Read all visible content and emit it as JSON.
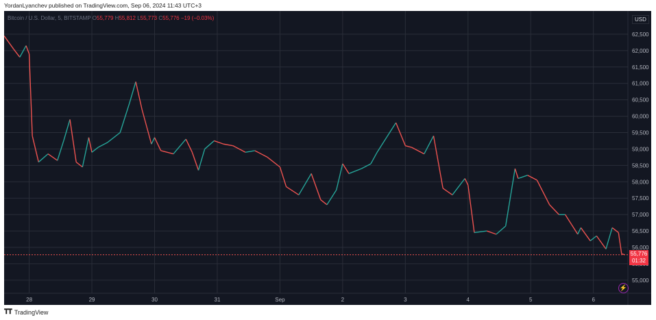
{
  "header": {
    "published": "YordanLyanchev published on TradingView.com, Sep 06, 2024 11:43 UTC+3"
  },
  "legend": {
    "symbol": "Bitcoin / U.S. Dollar, 5, BITSTAMP",
    "o_label": "O",
    "o": "55,779",
    "h_label": "H",
    "h": "55,812",
    "l_label": "L",
    "l": "55,773",
    "c_label": "C",
    "c": "55,776",
    "change": "−19 (−0.03%)"
  },
  "currency": "USD",
  "price_tag": {
    "price": "55,776",
    "countdown": "01:32"
  },
  "footer": {
    "brand": "TradingView"
  },
  "colors": {
    "up": "#26a69a",
    "down": "#ef5350",
    "grid": "#2a2e39",
    "bg": "#131722",
    "tag": "#f23645"
  },
  "chart_data": {
    "type": "line",
    "title": "",
    "xlabel": "",
    "ylabel": "",
    "x_ticks": [
      "28",
      "29",
      "30",
      "31",
      "Sep",
      "2",
      "3",
      "4",
      "5",
      "6"
    ],
    "y_ticks": [
      "62,500",
      "62,000",
      "61,500",
      "61,000",
      "60,500",
      "60,000",
      "59,500",
      "59,000",
      "58,500",
      "58,000",
      "57,500",
      "57,000",
      "56,500",
      "56,000",
      "55,500",
      "55,000"
    ],
    "ylim": [
      54600,
      63000
    ],
    "xlim": [
      27.6,
      37.55
    ],
    "last_price": 55776,
    "series": [
      {
        "x": [
          27.6,
          27.75,
          27.85,
          27.95,
          28.0,
          28.05,
          28.15,
          28.3,
          28.45,
          28.55,
          28.65,
          28.75,
          28.85,
          28.95,
          29.0,
          29.1,
          29.25,
          29.45,
          29.6,
          29.7,
          29.8,
          29.95,
          30.0,
          30.1,
          30.3,
          30.5,
          30.6,
          30.7,
          30.8,
          30.95,
          31.1,
          31.25,
          31.45,
          31.6,
          31.8,
          32.0,
          32.1,
          32.3,
          32.5,
          32.65,
          32.75,
          32.9,
          33.0,
          33.1,
          33.3,
          33.45,
          33.55,
          33.7,
          33.85,
          34.0,
          34.1,
          34.3,
          34.45,
          34.6,
          34.75,
          34.95,
          35.0,
          35.1,
          35.3,
          35.45,
          35.6,
          35.75,
          35.8,
          35.95,
          36.1,
          36.3,
          36.45,
          36.55,
          36.65,
          36.75,
          36.8,
          36.95,
          37.05,
          37.2,
          37.3,
          37.4,
          37.45,
          37.5
        ],
        "values": [
          62450,
          62050,
          61800,
          62150,
          61900,
          59400,
          58600,
          58850,
          58650,
          59250,
          59900,
          58600,
          58450,
          59350,
          58900,
          59050,
          59200,
          59500,
          60400,
          61050,
          60200,
          59150,
          59350,
          58950,
          58850,
          59300,
          58900,
          58350,
          59000,
          59250,
          59150,
          59100,
          58900,
          58950,
          58750,
          58450,
          57850,
          57600,
          58250,
          57450,
          57300,
          57750,
          58550,
          58250,
          58400,
          58550,
          58900,
          59350,
          59800,
          59100,
          59050,
          58850,
          59400,
          57800,
          57600,
          58100,
          57900,
          56450,
          56500,
          56400,
          56650,
          58400,
          58100,
          58200,
          58050,
          57300,
          57000,
          57000,
          56700,
          56400,
          56600,
          56200,
          56350,
          55950,
          56600,
          56450,
          55800,
          55776
        ]
      }
    ]
  }
}
